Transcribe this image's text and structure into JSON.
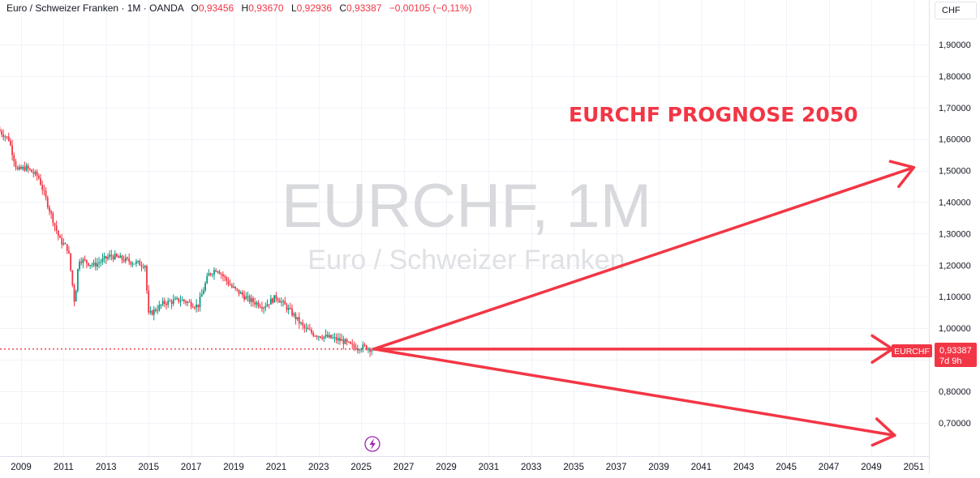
{
  "legend": {
    "symbol_title": "Euro / Schweizer Franken",
    "interval": "1M",
    "exchange": "OANDA",
    "open_label": "O",
    "open": "0,93456",
    "high_label": "H",
    "high": "0,93670",
    "low_label": "L",
    "low": "0,92936",
    "close_label": "C",
    "close": "0,93387",
    "change": "−0,00105 (−0,11%)"
  },
  "currency": "CHF",
  "watermark": {
    "line1": "EURCHF, 1M",
    "line2": "Euro / Schweizer Franken"
  },
  "annotation": {
    "text": "EURCHF PROGNOSE 2050",
    "color": "#f23645"
  },
  "price_tag": {
    "symbol": "EURCHF",
    "price": "0,93387",
    "countdown": "7d 9h",
    "color": "#f23645"
  },
  "colors": {
    "up": "#089981",
    "down": "#f23645",
    "arrow": "#f23645"
  },
  "chart_data": {
    "type": "candlestick",
    "y_axis_labels": [
      "1,90000",
      "1,80000",
      "1,70000",
      "1,60000",
      "1,50000",
      "1,40000",
      "1,30000",
      "1,20000",
      "1,10000",
      "1,00000",
      "0,80000",
      "0,70000"
    ],
    "y_axis_values": [
      1.9,
      1.8,
      1.7,
      1.6,
      1.5,
      1.4,
      1.3,
      1.2,
      1.1,
      1.0,
      0.8,
      0.7
    ],
    "ylim": [
      0.61,
      1.97
    ],
    "x_axis_labels": [
      "2009",
      "2011",
      "2013",
      "2015",
      "2017",
      "2019",
      "2021",
      "2023",
      "2025",
      "2027",
      "2029",
      "2031",
      "2033",
      "2035",
      "2037",
      "2039",
      "2041",
      "2043",
      "2045",
      "2047",
      "2049",
      "2051"
    ],
    "x_axis_years": [
      2009,
      2011,
      2013,
      2015,
      2017,
      2019,
      2021,
      2023,
      2025,
      2027,
      2029,
      2031,
      2033,
      2035,
      2037,
      2039,
      2041,
      2043,
      2045,
      2047,
      2049,
      2051
    ],
    "grid": true,
    "last_price": 0.93387,
    "price_path": [
      [
        2008.0,
        1.63
      ],
      [
        2008.5,
        1.6
      ],
      [
        2008.9,
        1.5
      ],
      [
        2009.3,
        1.51
      ],
      [
        2009.9,
        1.48
      ],
      [
        2010.4,
        1.38
      ],
      [
        2010.9,
        1.28
      ],
      [
        2011.3,
        1.25
      ],
      [
        2011.6,
        1.08
      ],
      [
        2011.8,
        1.22
      ],
      [
        2012.5,
        1.2
      ],
      [
        2013.3,
        1.23
      ],
      [
        2014.3,
        1.21
      ],
      [
        2014.95,
        1.2
      ],
      [
        2015.05,
        1.04
      ],
      [
        2015.8,
        1.08
      ],
      [
        2016.6,
        1.09
      ],
      [
        2017.4,
        1.07
      ],
      [
        2017.9,
        1.17
      ],
      [
        2018.3,
        1.19
      ],
      [
        2019.0,
        1.13
      ],
      [
        2019.8,
        1.09
      ],
      [
        2020.5,
        1.07
      ],
      [
        2021.1,
        1.1
      ],
      [
        2021.8,
        1.05
      ],
      [
        2022.4,
        1.0
      ],
      [
        2022.9,
        0.98
      ],
      [
        2023.6,
        0.97
      ],
      [
        2024.2,
        0.96
      ],
      [
        2024.7,
        0.94
      ],
      [
        2025.3,
        0.94
      ],
      [
        2025.6,
        0.93387
      ]
    ],
    "forecast_arrows": [
      {
        "from": [
          2025.6,
          0.93387
        ],
        "to": [
          2051.0,
          1.51
        ]
      },
      {
        "from": [
          2025.6,
          0.93387
        ],
        "to": [
          2050.0,
          0.93387
        ]
      },
      {
        "from": [
          2025.6,
          0.93387
        ],
        "to": [
          2050.1,
          0.66
        ]
      }
    ]
  }
}
